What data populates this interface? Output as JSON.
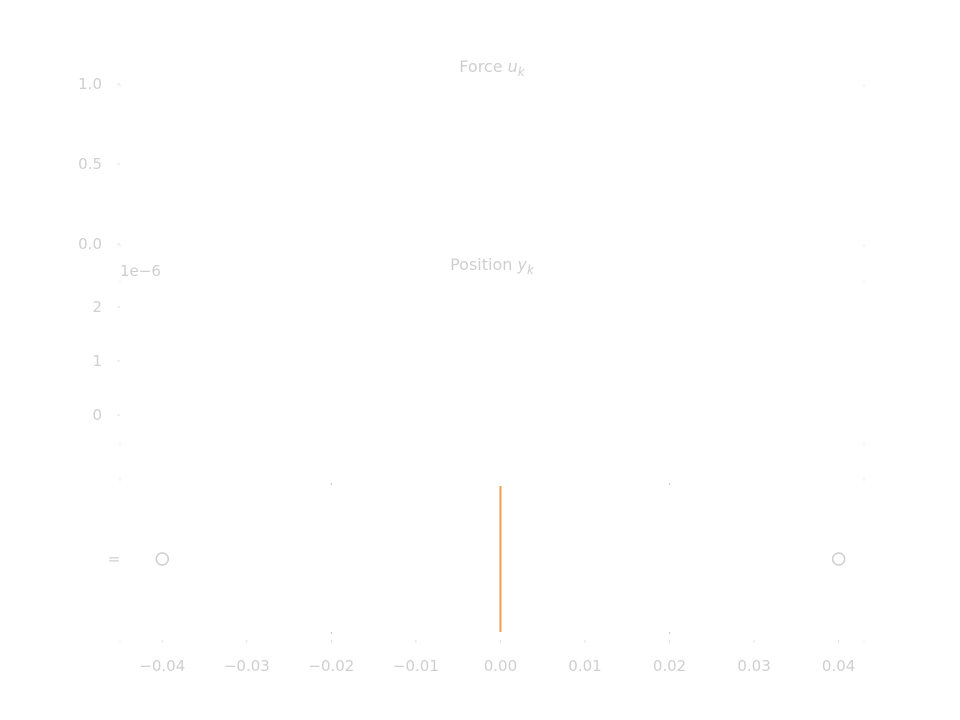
{
  "chart_data": [
    {
      "type": "line",
      "title_text": "Force ",
      "title_symbol": "u",
      "title_sub": "k",
      "ylim": [
        0.0,
        1.0
      ],
      "yticks": [
        0.0,
        0.5,
        1.0
      ],
      "ytick_labels": [
        "0.0",
        "0.5",
        "1.0"
      ],
      "grid": false,
      "series": []
    },
    {
      "type": "line",
      "title_text": "Position ",
      "title_symbol": "y",
      "title_sub": "k",
      "offset_text": "1e−6",
      "ylim": [
        -0.5,
        2.5
      ],
      "yticks": [
        0,
        1,
        2
      ],
      "ytick_labels": [
        "0",
        "1",
        "2"
      ],
      "grid": false,
      "series": []
    },
    {
      "type": "scatter",
      "xlim": [
        -0.045,
        0.043
      ],
      "xticks": [
        -0.04,
        -0.03,
        -0.02,
        -0.01,
        0.0,
        0.01,
        0.02,
        0.03,
        0.04
      ],
      "xtick_labels": [
        "−0.04",
        "−0.03",
        "−0.02",
        "−0.01",
        "0.00",
        "0.01",
        "0.02",
        "0.03",
        "0.04"
      ],
      "marker_label": "=",
      "points": [
        {
          "x": -0.04
        },
        {
          "x": 0.04
        }
      ],
      "vline": {
        "x": 0.0,
        "color": "#f0a050"
      },
      "grid": false
    }
  ]
}
